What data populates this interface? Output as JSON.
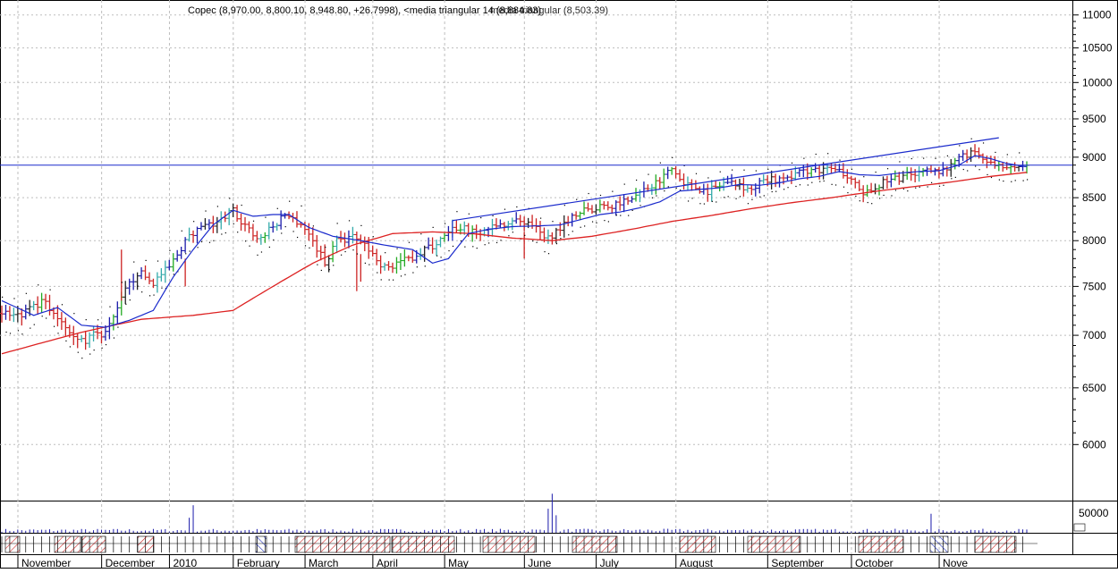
{
  "chart_data": {
    "type": "bar",
    "title": "Copec (8,970.00, 8,800.10, 8,948.80, +26.7998), <media triangular 14 (8,884.83)",
    "title_overlap_text": "media triangular (8,503.39)",
    "x_ticks": [
      "November",
      "December",
      "2010",
      "February",
      "March",
      "April",
      "May",
      "June",
      "July",
      "August",
      "September",
      "October",
      "Nove"
    ],
    "y_ticks": [
      6000,
      6500,
      7000,
      7500,
      8000,
      8500,
      9000,
      9500,
      10000,
      10500,
      11000
    ],
    "ylim": [
      5600,
      11080
    ],
    "volume_ticks": [
      "50000"
    ],
    "horizontal_line": 8900,
    "trendline": [
      {
        "bar": 113,
        "value": 8230
      },
      {
        "bar": 250,
        "value": 9250
      }
    ],
    "month_start_bars": [
      0,
      21,
      38,
      54,
      72,
      89,
      107,
      127,
      145,
      165,
      188,
      209,
      231
    ],
    "price_anchors": [
      [
        0,
        7220
      ],
      [
        5,
        7190
      ],
      [
        10,
        7350
      ],
      [
        15,
        7150
      ],
      [
        20,
        6950
      ],
      [
        25,
        7020
      ],
      [
        28,
        7150
      ],
      [
        31,
        7450
      ],
      [
        34,
        7650
      ],
      [
        38,
        7550
      ],
      [
        42,
        7700
      ],
      [
        46,
        8000
      ],
      [
        50,
        8150
      ],
      [
        54,
        8200
      ],
      [
        58,
        8350
      ],
      [
        64,
        8000
      ],
      [
        68,
        8150
      ],
      [
        71,
        8300
      ],
      [
        75,
        8200
      ],
      [
        78,
        8000
      ],
      [
        81,
        7750
      ],
      [
        84,
        8000
      ],
      [
        88,
        8050
      ],
      [
        92,
        7900
      ],
      [
        96,
        7700
      ],
      [
        102,
        7800
      ],
      [
        106,
        7900
      ],
      [
        110,
        8000
      ],
      [
        114,
        8150
      ],
      [
        118,
        8100
      ],
      [
        124,
        8150
      ],
      [
        128,
        8250
      ],
      [
        132,
        8180
      ],
      [
        137,
        8030
      ],
      [
        142,
        8250
      ],
      [
        146,
        8350
      ],
      [
        152,
        8400
      ],
      [
        158,
        8500
      ],
      [
        163,
        8650
      ],
      [
        168,
        8850
      ],
      [
        172,
        8650
      ],
      [
        177,
        8580
      ],
      [
        182,
        8700
      ],
      [
        187,
        8620
      ],
      [
        192,
        8700
      ],
      [
        196,
        8750
      ],
      [
        202,
        8830
      ],
      [
        207,
        8850
      ],
      [
        211,
        8800
      ],
      [
        216,
        8560
      ],
      [
        222,
        8700
      ],
      [
        228,
        8780
      ],
      [
        233,
        8820
      ],
      [
        237,
        8850
      ],
      [
        241,
        9000
      ],
      [
        244,
        9070
      ],
      [
        247,
        8950
      ],
      [
        250,
        8900
      ],
      [
        253,
        8850
      ],
      [
        257,
        8900
      ]
    ],
    "sma_anchors": [
      [
        0,
        7350
      ],
      [
        8,
        7200
      ],
      [
        14,
        7280
      ],
      [
        20,
        7100
      ],
      [
        26,
        7080
      ],
      [
        32,
        7150
      ],
      [
        38,
        7250
      ],
      [
        43,
        7600
      ],
      [
        48,
        7900
      ],
      [
        53,
        8180
      ],
      [
        58,
        8350
      ],
      [
        63,
        8280
      ],
      [
        68,
        8300
      ],
      [
        72,
        8300
      ],
      [
        77,
        8150
      ],
      [
        83,
        8050
      ],
      [
        90,
        8000
      ],
      [
        96,
        7950
      ],
      [
        103,
        7900
      ],
      [
        108,
        7750
      ],
      [
        112,
        7800
      ],
      [
        117,
        8080
      ],
      [
        122,
        8130
      ],
      [
        128,
        8160
      ],
      [
        135,
        8170
      ],
      [
        140,
        8180
      ],
      [
        145,
        8240
      ],
      [
        150,
        8300
      ],
      [
        155,
        8330
      ],
      [
        160,
        8380
      ],
      [
        165,
        8450
      ],
      [
        170,
        8580
      ],
      [
        175,
        8600
      ],
      [
        180,
        8620
      ],
      [
        185,
        8660
      ],
      [
        190,
        8650
      ],
      [
        195,
        8680
      ],
      [
        200,
        8730
      ],
      [
        205,
        8760
      ],
      [
        210,
        8820
      ],
      [
        215,
        8780
      ],
      [
        220,
        8770
      ],
      [
        225,
        8800
      ],
      [
        230,
        8820
      ],
      [
        235,
        8830
      ],
      [
        240,
        8900
      ],
      [
        244,
        9020
      ],
      [
        248,
        8980
      ],
      [
        252,
        8920
      ],
      [
        257,
        8880
      ]
    ],
    "ema_anchors": [
      [
        0,
        6820
      ],
      [
        20,
        7030
      ],
      [
        35,
        7160
      ],
      [
        48,
        7200
      ],
      [
        58,
        7250
      ],
      [
        68,
        7500
      ],
      [
        78,
        7750
      ],
      [
        88,
        7950
      ],
      [
        98,
        8080
      ],
      [
        108,
        8100
      ],
      [
        118,
        8080
      ],
      [
        128,
        8030
      ],
      [
        138,
        8000
      ],
      [
        148,
        8050
      ],
      [
        158,
        8130
      ],
      [
        168,
        8220
      ],
      [
        178,
        8290
      ],
      [
        188,
        8370
      ],
      [
        198,
        8440
      ],
      [
        208,
        8500
      ],
      [
        218,
        8570
      ],
      [
        228,
        8630
      ],
      [
        238,
        8690
      ],
      [
        248,
        8760
      ],
      [
        257,
        8810
      ]
    ],
    "volume_spikes": [
      [
        2,
        1
      ],
      [
        20,
        1
      ],
      [
        28,
        1
      ],
      [
        44,
        1
      ],
      [
        46,
        1
      ],
      [
        114,
        1
      ],
      [
        134,
        1
      ],
      [
        136,
        1
      ],
      [
        168,
        1
      ],
      [
        202,
        1
      ],
      [
        236,
        1
      ],
      [
        238,
        1
      ],
      [
        253,
        1
      ]
    ],
    "volume_peaks": [
      [
        47,
        30000
      ],
      [
        48,
        55000
      ],
      [
        137,
        48000
      ],
      [
        138,
        78000
      ],
      [
        139,
        35000
      ],
      [
        233,
        38000
      ]
    ]
  }
}
